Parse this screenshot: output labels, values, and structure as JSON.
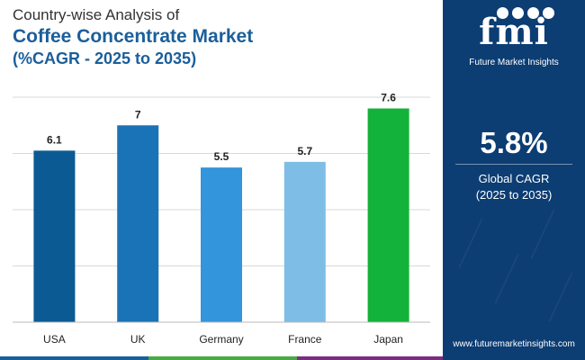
{
  "header": {
    "line1": "Country-wise Analysis of",
    "line2": "Coffee Concentrate Market",
    "line3": "(%CAGR - 2025 to 2035)"
  },
  "chart_data": {
    "type": "bar",
    "categories": [
      "USA",
      "UK",
      "Germany",
      "France",
      "Japan"
    ],
    "values": [
      6.1,
      7,
      5.5,
      5.7,
      7.6
    ],
    "value_labels": [
      "6.1",
      "7",
      "5.5",
      "5.7",
      "7.6"
    ],
    "bar_colors": [
      "#0b5a94",
      "#1a73b6",
      "#3395db",
      "#7ebde6",
      "#13b23a"
    ],
    "ylim": [
      0,
      8
    ],
    "grid": true,
    "title": "",
    "xlabel": "",
    "ylabel": ""
  },
  "panel": {
    "logo_text": "fmi",
    "logo_subtext": "Future Market Insights",
    "cagr_value": "5.8%",
    "cagr_label_line1": "Global CAGR",
    "cagr_label_line2": "(2025 to 2035)",
    "website": "www.futuremarketinsights.com"
  },
  "colors": {
    "panel_bg": "#0c3d73",
    "title_accent": "#1b5f9a",
    "footer_segments": [
      "#1b5f9a",
      "#49a942",
      "#7b2d82",
      "#0c3d73"
    ]
  }
}
